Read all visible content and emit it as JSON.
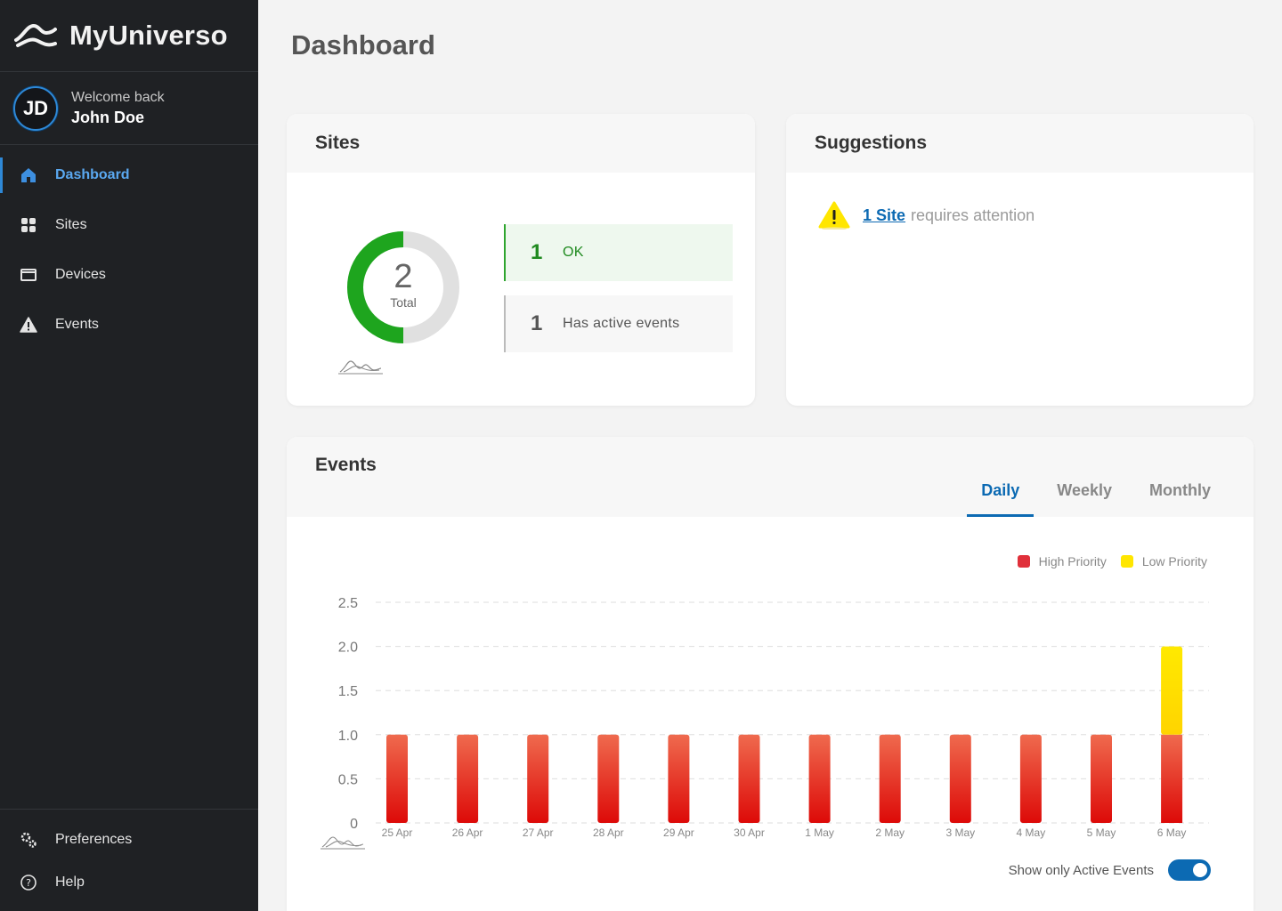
{
  "app": {
    "name": "MyUniverso"
  },
  "user": {
    "initials": "JD",
    "welcome": "Welcome back",
    "name": "John Doe"
  },
  "nav": [
    {
      "label": "Dashboard",
      "icon": "home-icon",
      "active": true
    },
    {
      "label": "Sites",
      "icon": "grid-icon"
    },
    {
      "label": "Devices",
      "icon": "device-icon"
    },
    {
      "label": "Events",
      "icon": "warning-icon"
    }
  ],
  "bottom_nav": [
    {
      "label": "Preferences",
      "icon": "gears-icon"
    },
    {
      "label": "Help",
      "icon": "help-icon"
    }
  ],
  "page": {
    "title": "Dashboard"
  },
  "sites": {
    "title": "Sites",
    "total": "2",
    "total_label": "Total",
    "ok_count": "1",
    "ok_label": "OK",
    "active_count": "1",
    "active_label": "Has active events",
    "ok_fraction": 0.5
  },
  "suggestions": {
    "title": "Suggestions",
    "link": "1 Site",
    "text": "requires attention"
  },
  "events": {
    "title": "Events",
    "tabs": [
      "Daily",
      "Weekly",
      "Monthly"
    ],
    "active_tab": "Daily",
    "legend": {
      "high": "High Priority",
      "low": "Low Priority"
    },
    "toggle_label": "Show only Active Events",
    "toggle_on": true
  },
  "colors": {
    "accent": "#0c6ab3",
    "ok": "#1ea51e",
    "high": "#e0201a",
    "low": "#ffe600",
    "sidebar": "#1f2124"
  },
  "chart_data": {
    "type": "bar",
    "stacked": true,
    "categories": [
      "25 Apr",
      "26 Apr",
      "27 Apr",
      "28 Apr",
      "29 Apr",
      "30 Apr",
      "1 May",
      "2 May",
      "3 May",
      "4 May",
      "5 May",
      "6 May"
    ],
    "series": [
      {
        "name": "High Priority",
        "values": [
          1,
          1,
          1,
          1,
          1,
          1,
          1,
          1,
          1,
          1,
          1,
          1
        ]
      },
      {
        "name": "Low Priority",
        "values": [
          0,
          0,
          0,
          0,
          0,
          0,
          0,
          0,
          0,
          0,
          0,
          1
        ]
      }
    ],
    "yticks": [
      "0",
      "0.5",
      "1.0",
      "1.5",
      "2.0",
      "2.5"
    ],
    "ylim": [
      0,
      2.5
    ],
    "grid": true,
    "legend": "top-right"
  }
}
